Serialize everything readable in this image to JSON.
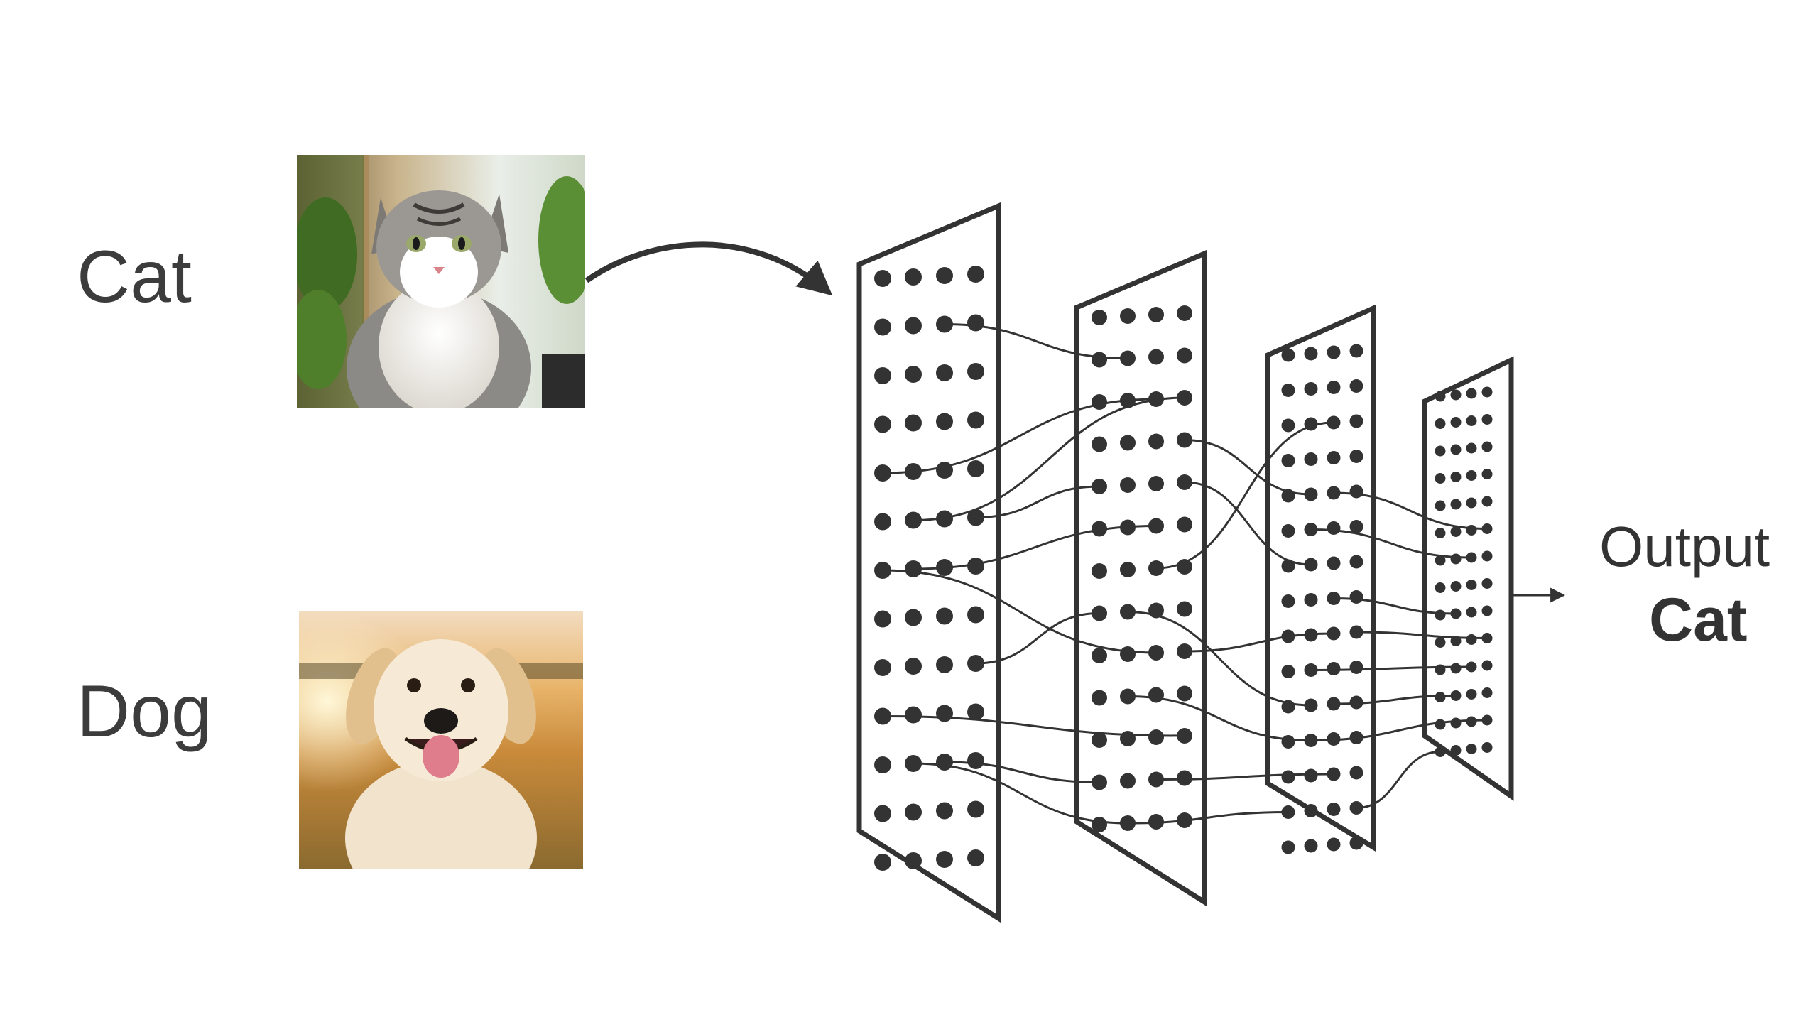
{
  "inputs": [
    {
      "label": "Cat",
      "image": "cat-photo"
    },
    {
      "label": "Dog",
      "image": "dog-photo"
    }
  ],
  "network": {
    "layers": 4
  },
  "output": {
    "heading": "Output",
    "value": "Cat"
  },
  "colors": {
    "ink": "#333333",
    "dot": "#333333",
    "text": "#3c3c3c",
    "background": "#ffffff"
  }
}
